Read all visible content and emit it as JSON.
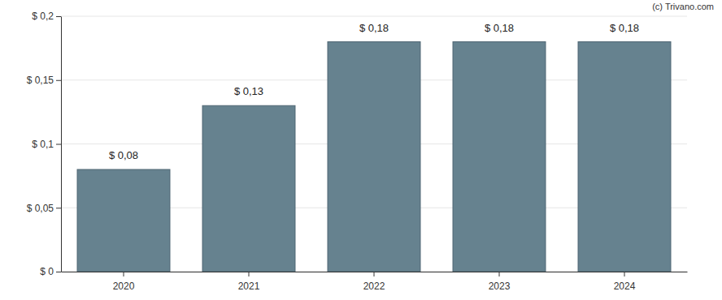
{
  "chart_data": {
    "type": "bar",
    "categories": [
      "2020",
      "2021",
      "2022",
      "2023",
      "2024"
    ],
    "values": [
      0.08,
      0.13,
      0.18,
      0.18,
      0.18
    ],
    "value_labels": [
      "$ 0,08",
      "$ 0,13",
      "$ 0,18",
      "$ 0,18",
      "$ 0,18"
    ],
    "color": "#66828f",
    "ylim": [
      0,
      0.2
    ],
    "yticks": [
      {
        "value": 0,
        "label": "$ 0"
      },
      {
        "value": 0.05,
        "label": "$ 0,05"
      },
      {
        "value": 0.1,
        "label": "$ 0,1"
      },
      {
        "value": 0.15,
        "label": "$ 0,15"
      },
      {
        "value": 0.2,
        "label": "$ 0,2"
      }
    ],
    "grid": true,
    "data_labels": true,
    "annotations": [
      "(c) Trivano.com"
    ]
  }
}
